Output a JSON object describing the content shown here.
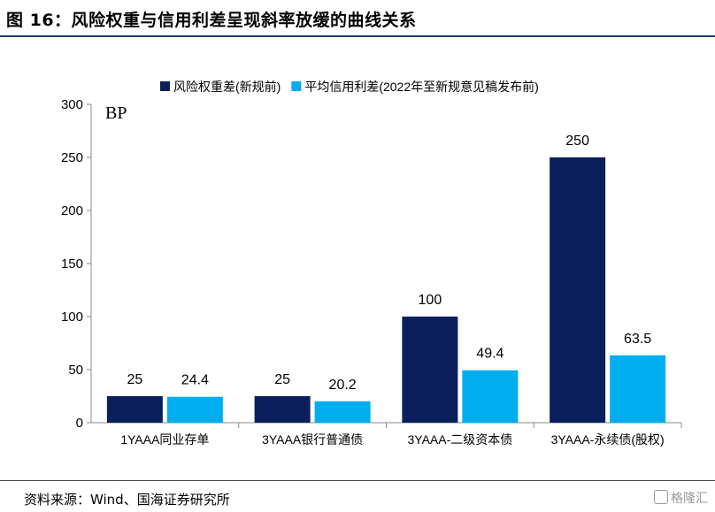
{
  "figure_title": "图 16：风险权重与信用利差呈现斜率放缓的曲线关系",
  "source": "资料来源：Wind、国海证券研究所",
  "watermark": "格隆汇",
  "colors": {
    "series1": "#0b1f5c",
    "series2": "#00aeef",
    "rule": "#1f3a6e",
    "axis": "#888888"
  },
  "chart_data": {
    "type": "bar",
    "unit_label": "BP",
    "ylim": [
      0,
      300
    ],
    "yticks": [
      0,
      50,
      100,
      150,
      200,
      250,
      300
    ],
    "grid": false,
    "legend_position": "top-right",
    "categories": [
      "1YAAA同业存单",
      "3YAAA银行普通债",
      "3YAAA-二级资本债",
      "3YAAA-永续债(股权)"
    ],
    "series": [
      {
        "name": "风险权重差(新规前)",
        "values": [
          25,
          25,
          100,
          250
        ],
        "labels": [
          "25",
          "25",
          "100",
          "250"
        ]
      },
      {
        "name": "平均信用利差(2022年至新规意见稿发布前)",
        "values": [
          24.4,
          20.2,
          49.4,
          63.5
        ],
        "labels": [
          "24.4",
          "20.2",
          "49.4",
          "63.5"
        ]
      }
    ]
  }
}
